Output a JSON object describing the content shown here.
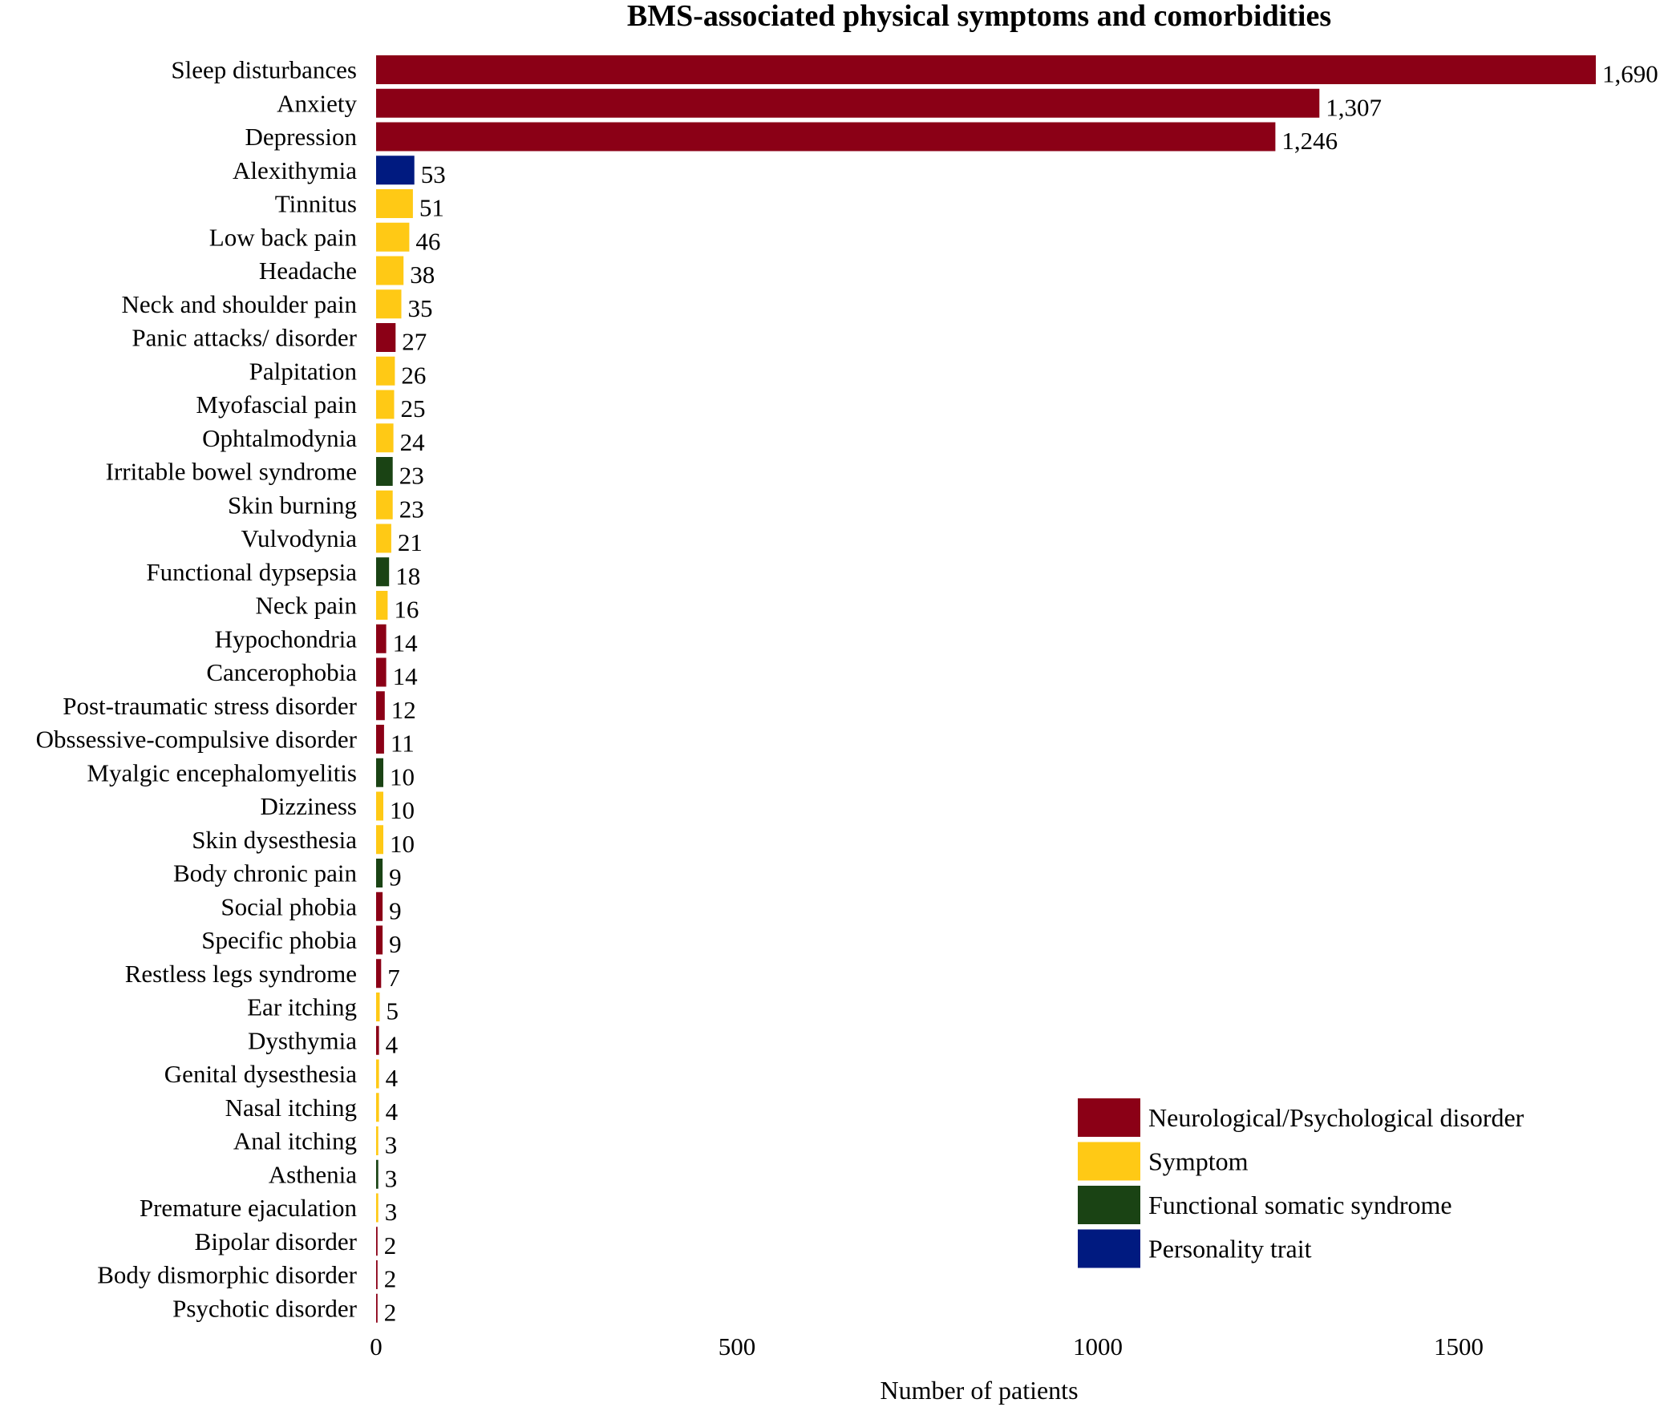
{
  "chart_data": {
    "type": "bar",
    "orientation": "horizontal",
    "title": "BMS-associated physical symptoms and comorbidities",
    "xlabel": "Number of patients",
    "ylabel": "",
    "xlim": [
      0,
      1690
    ],
    "xticks": [
      0,
      500,
      1000,
      1500
    ],
    "xtick_labels": [
      "0",
      "500",
      "1000",
      "1500"
    ],
    "grid": false,
    "legend_position": "bottom-right",
    "groups": [
      {
        "key": "neuro",
        "name": "Neurological/Psychological disorder",
        "color": "#8b0016"
      },
      {
        "key": "symptom",
        "name": "Symptom",
        "color": "#ffc915"
      },
      {
        "key": "functional",
        "name": "Functional somatic syndrome",
        "color": "#1a4314"
      },
      {
        "key": "personality",
        "name": "Personality trait",
        "color": "#001a80"
      }
    ],
    "bars": [
      {
        "category": "Sleep disturbances",
        "value": 1690,
        "label": "1,690",
        "group": "neuro"
      },
      {
        "category": "Anxiety",
        "value": 1307,
        "label": "1,307",
        "group": "neuro"
      },
      {
        "category": "Depression",
        "value": 1246,
        "label": "1,246",
        "group": "neuro"
      },
      {
        "category": "Alexithymia",
        "value": 53,
        "label": "53",
        "group": "personality"
      },
      {
        "category": "Tinnitus",
        "value": 51,
        "label": "51",
        "group": "symptom"
      },
      {
        "category": "Low back pain",
        "value": 46,
        "label": "46",
        "group": "symptom"
      },
      {
        "category": "Headache",
        "value": 38,
        "label": "38",
        "group": "symptom"
      },
      {
        "category": "Neck and shoulder pain",
        "value": 35,
        "label": "35",
        "group": "symptom"
      },
      {
        "category": "Panic attacks/ disorder",
        "value": 27,
        "label": "27",
        "group": "neuro"
      },
      {
        "category": "Palpitation",
        "value": 26,
        "label": "26",
        "group": "symptom"
      },
      {
        "category": "Myofascial pain",
        "value": 25,
        "label": "25",
        "group": "symptom"
      },
      {
        "category": "Ophtalmodynia",
        "value": 24,
        "label": "24",
        "group": "symptom"
      },
      {
        "category": "Irritable bowel syndrome",
        "value": 23,
        "label": "23",
        "group": "functional"
      },
      {
        "category": "Skin burning",
        "value": 23,
        "label": "23",
        "group": "symptom"
      },
      {
        "category": "Vulvodynia",
        "value": 21,
        "label": "21",
        "group": "symptom"
      },
      {
        "category": "Functional dypsepsia",
        "value": 18,
        "label": "18",
        "group": "functional"
      },
      {
        "category": "Neck pain",
        "value": 16,
        "label": "16",
        "group": "symptom"
      },
      {
        "category": "Hypochondria",
        "value": 14,
        "label": "14",
        "group": "neuro"
      },
      {
        "category": "Cancerophobia",
        "value": 14,
        "label": "14",
        "group": "neuro"
      },
      {
        "category": "Post-traumatic stress disorder",
        "value": 12,
        "label": "12",
        "group": "neuro"
      },
      {
        "category": "Obssessive-compulsive disorder",
        "value": 11,
        "label": "11",
        "group": "neuro"
      },
      {
        "category": "Myalgic encephalomyelitis",
        "value": 10,
        "label": "10",
        "group": "functional"
      },
      {
        "category": "Dizziness",
        "value": 10,
        "label": "10",
        "group": "symptom"
      },
      {
        "category": "Skin dysesthesia",
        "value": 10,
        "label": "10",
        "group": "symptom"
      },
      {
        "category": "Body chronic pain",
        "value": 9,
        "label": "9",
        "group": "functional"
      },
      {
        "category": "Social phobia",
        "value": 9,
        "label": "9",
        "group": "neuro"
      },
      {
        "category": "Specific phobia",
        "value": 9,
        "label": "9",
        "group": "neuro"
      },
      {
        "category": "Restless legs syndrome",
        "value": 7,
        "label": "7",
        "group": "neuro"
      },
      {
        "category": "Ear itching",
        "value": 5,
        "label": "5",
        "group": "symptom"
      },
      {
        "category": "Dysthymia",
        "value": 4,
        "label": "4",
        "group": "neuro"
      },
      {
        "category": "Genital dysesthesia",
        "value": 4,
        "label": "4",
        "group": "symptom"
      },
      {
        "category": "Nasal itching",
        "value": 4,
        "label": "4",
        "group": "symptom"
      },
      {
        "category": "Anal itching",
        "value": 3,
        "label": "3",
        "group": "symptom"
      },
      {
        "category": "Asthenia",
        "value": 3,
        "label": "3",
        "group": "functional"
      },
      {
        "category": "Premature ejaculation",
        "value": 3,
        "label": "3",
        "group": "symptom"
      },
      {
        "category": "Bipolar disorder",
        "value": 2,
        "label": "2",
        "group": "neuro"
      },
      {
        "category": "Body dismorphic disorder",
        "value": 2,
        "label": "2",
        "group": "neuro"
      },
      {
        "category": "Psychotic disorder",
        "value": 2,
        "label": "2",
        "group": "neuro"
      }
    ]
  }
}
